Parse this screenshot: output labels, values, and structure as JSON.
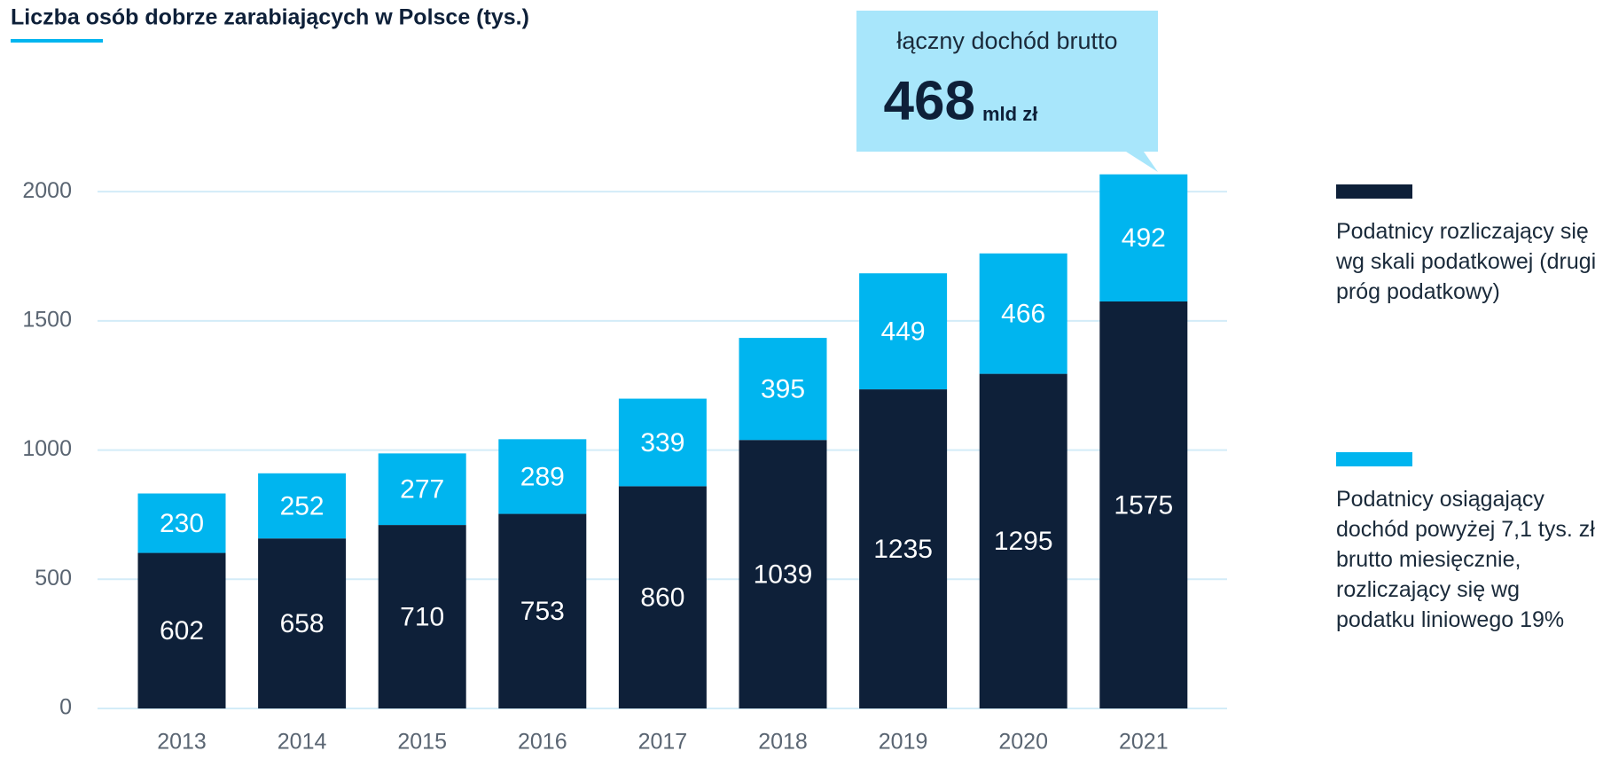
{
  "chart_data": {
    "type": "stacked_bar",
    "title": "Liczba osób dobrze zarabiających w Polsce (tys.)",
    "categories": [
      "2013",
      "2014",
      "2015",
      "2016",
      "2017",
      "2018",
      "2019",
      "2020",
      "2021"
    ],
    "series": [
      {
        "name": "Podatnicy rozliczający się wg skali podatkowej (drugi próg podatkowy)",
        "color": "#0e2039",
        "values": [
          602,
          658,
          710,
          753,
          860,
          1039,
          1235,
          1295,
          1575
        ]
      },
      {
        "name": "Podatnicy osiągający dochód powyżej 7,1 tys. zł brutto miesięcznie, rozliczający się wg podatku liniowego 19%",
        "color": "#00b5ef",
        "values": [
          230,
          252,
          277,
          289,
          339,
          395,
          449,
          466,
          492
        ]
      }
    ],
    "ylim": [
      0,
      2100
    ],
    "yticks": [
      0,
      500,
      1000,
      1500,
      2000
    ],
    "grid": true,
    "legend": "right",
    "annotation": {
      "text": "łączny dochód brutto",
      "value": 468,
      "unit": "mld zł"
    }
  }
}
